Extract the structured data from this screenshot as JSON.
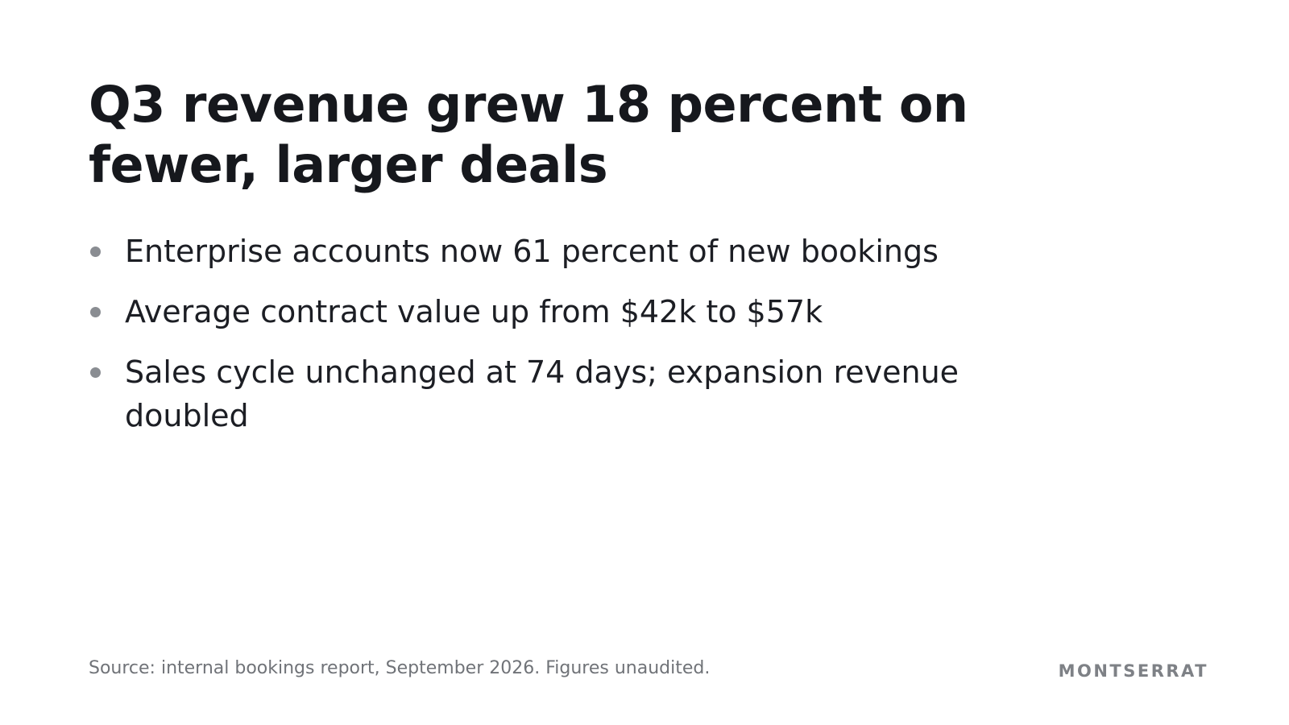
{
  "slide": {
    "title": "Q3 revenue grew 18 percent on fewer, larger deals",
    "bullets": [
      {
        "text": "Enterprise accounts now 61 percent of new bookings"
      },
      {
        "text": "Average contract value up from $42k to $57k"
      },
      {
        "text": "Sales cycle unchanged at 74 days; expansion revenue doubled"
      }
    ],
    "source": "Source: internal bookings report, September 2026. Figures unaudited.",
    "brand": "MONTSERRAT"
  },
  "colors": {
    "background": "#ffffff",
    "title": "#16181d",
    "body": "#1c1e24",
    "bullet_dot": "#8a8d92",
    "muted": "#707378"
  }
}
